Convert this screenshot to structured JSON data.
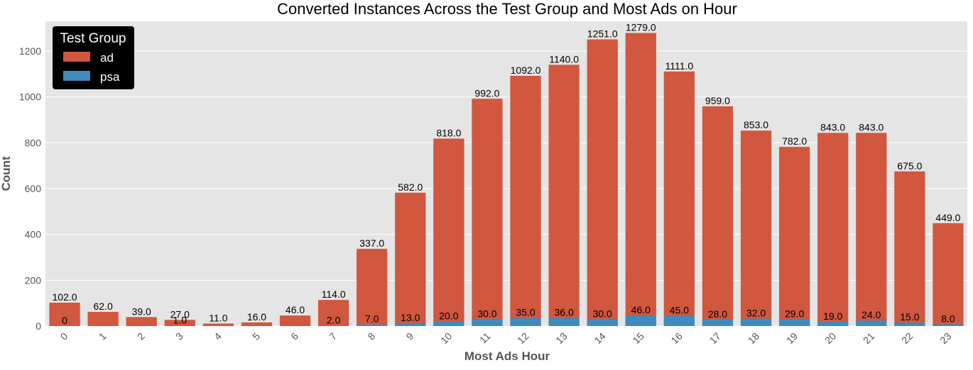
{
  "chart_data": {
    "type": "bar",
    "title": "Converted Instances Across the Test Group and Most Ads on Hour",
    "xlabel": "Most Ads Hour",
    "ylabel": "Count",
    "ylim": [
      0,
      1330
    ],
    "yticks": [
      0,
      200,
      400,
      600,
      800,
      1000,
      1200
    ],
    "grid": true,
    "stacked": false,
    "legend": {
      "title": "Test Group",
      "position": "top-left"
    },
    "categories": [
      "0",
      "1",
      "2",
      "3",
      "4",
      "5",
      "6",
      "7",
      "8",
      "9",
      "10",
      "11",
      "12",
      "13",
      "14",
      "15",
      "16",
      "17",
      "18",
      "19",
      "20",
      "21",
      "22",
      "23"
    ],
    "series": [
      {
        "name": "ad",
        "color": "#d1573f",
        "values": [
          102,
          62,
          39,
          27,
          11,
          16,
          46,
          114,
          337,
          582,
          818,
          992,
          1092,
          1140,
          1251,
          1279,
          1111,
          959,
          853,
          782,
          843,
          843,
          675,
          449
        ],
        "labels": [
          "102.0",
          "62.0",
          "39.0",
          "27.0",
          "11.0",
          "16.0",
          "46.0",
          "114.0",
          "337.0",
          "582.0",
          "818.0",
          "992.0",
          "1092.0",
          "1140.0",
          "1251.0",
          "1279.0",
          "1111.0",
          "959.0",
          "853.0",
          "782.0",
          "843.0",
          "843.0",
          "675.0",
          "449.0"
        ]
      },
      {
        "name": "psa",
        "color": "#3f8bbb",
        "values": [
          0,
          0,
          0,
          1,
          0,
          0,
          0,
          2,
          7,
          13,
          20,
          30,
          35,
          36,
          30,
          46,
          45,
          28,
          32,
          29,
          19,
          24,
          15,
          8
        ],
        "labels": [
          "0",
          "",
          "",
          "1.0",
          "",
          "",
          "",
          "2.0",
          "7.0",
          "13.0",
          "20.0",
          "30.0",
          "35.0",
          "36.0",
          "30.0",
          "46.0",
          "45.0",
          "28.0",
          "32.0",
          "29.0",
          "19.0",
          "24.0",
          "15.0",
          "8.0"
        ]
      }
    ],
    "colors": {
      "plot_background": "#e5e5e5",
      "grid": "#ffffff",
      "legend_background": "#000000"
    }
  }
}
